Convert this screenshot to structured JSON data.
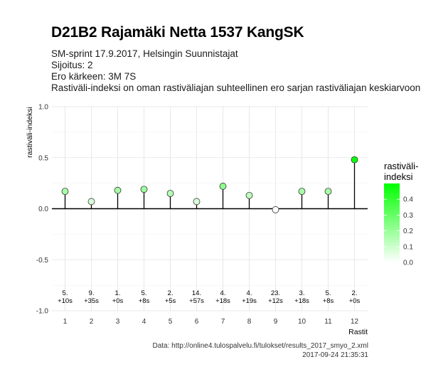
{
  "header": {
    "title": "D21B2 Rajamäki Netta 1537 KangSK",
    "subtitle_lines": [
      "SM-sprint 17.9.2017, Helsingin Suunnistajat",
      "Sijoitus: 2",
      "Ero kärkeen: 3M 7S",
      "Rastiväli-indeksi on oman rastiväliajan suhteellinen ero sarjan rastiväliajan keskiarvoon"
    ]
  },
  "chart_data": {
    "type": "scatter",
    "style": "lollipop",
    "xlabel": "Rastit",
    "ylabel": "rastiväli-indeksi",
    "x": [
      1,
      2,
      3,
      4,
      5,
      6,
      7,
      8,
      9,
      10,
      11,
      12
    ],
    "y": [
      0.17,
      0.07,
      0.18,
      0.19,
      0.15,
      0.07,
      0.22,
      0.13,
      -0.01,
      0.17,
      0.17,
      0.48
    ],
    "ylim": [
      -1.0,
      1.0
    ],
    "xlim": [
      0.5,
      12.5
    ],
    "yticks": [
      -1.0,
      -0.5,
      0.0,
      0.5,
      1.0
    ],
    "ytick_labels": [
      "-1.0",
      "-0.5",
      "0.0",
      "0.5",
      "1.0"
    ],
    "xticks": [
      1,
      2,
      3,
      4,
      5,
      6,
      7,
      8,
      9,
      10,
      11,
      12
    ],
    "annotations": [
      {
        "x": 1,
        "rank": "5.",
        "diff": "+10s"
      },
      {
        "x": 2,
        "rank": "9.",
        "diff": "+35s"
      },
      {
        "x": 3,
        "rank": "1.",
        "diff": "+0s"
      },
      {
        "x": 4,
        "rank": "5.",
        "diff": "+8s"
      },
      {
        "x": 5,
        "rank": "2.",
        "diff": "+5s"
      },
      {
        "x": 6,
        "rank": "14.",
        "diff": "+57s"
      },
      {
        "x": 7,
        "rank": "4.",
        "diff": "+18s"
      },
      {
        "x": 8,
        "rank": "4.",
        "diff": "+19s"
      },
      {
        "x": 9,
        "rank": "23.",
        "diff": "+12s"
      },
      {
        "x": 10,
        "rank": "3.",
        "diff": "+18s"
      },
      {
        "x": 11,
        "rank": "5.",
        "diff": "+8s"
      },
      {
        "x": 12,
        "rank": "2.",
        "diff": "+0s"
      }
    ],
    "legend": {
      "title_lines": [
        "rastiväli-",
        "indeksi"
      ],
      "range": [
        0.0,
        0.5
      ],
      "ticks": [
        0.0,
        0.1,
        0.2,
        0.3,
        0.4
      ],
      "tick_labels": [
        "0.0",
        "0.1",
        "0.2",
        "0.3",
        "0.4"
      ],
      "placement": "right"
    },
    "colors": {
      "low": "#ffffff",
      "high": "#00ff00",
      "zero_line": "#000000",
      "grid": "#e3e3e3"
    },
    "grid": true
  },
  "footer": {
    "source": "Data: http://online4.tulospalvelu.fi/tulokset/results_2017_smyo_2.xml",
    "timestamp": "2017-09-24 21:35:31"
  }
}
